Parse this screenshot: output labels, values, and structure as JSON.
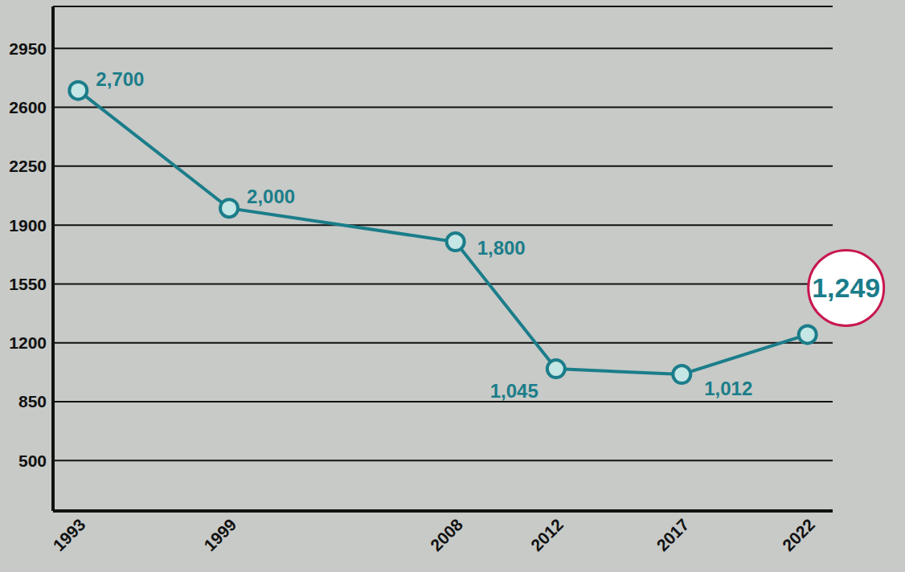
{
  "chart_data": {
    "type": "line",
    "x": [
      1993,
      1999,
      2008,
      2012,
      2017,
      2022
    ],
    "values": [
      2700,
      2000,
      1800,
      1045,
      1012,
      1249
    ],
    "value_labels": [
      "2,700",
      "2,000",
      "1,800",
      "1,045",
      "1,012",
      "1,249"
    ],
    "color": "#1b7d8a",
    "marker": "circle",
    "line_style": "solid",
    "xlim": [
      1992,
      2023
    ],
    "xticks": [
      1993,
      1999,
      2008,
      2012,
      2017,
      2022
    ],
    "ylim": [
      200,
      3200
    ],
    "yticks": [
      500,
      850,
      1200,
      1550,
      1900,
      2250,
      2600,
      2950
    ],
    "grid": true,
    "data_labels": true
  }
}
